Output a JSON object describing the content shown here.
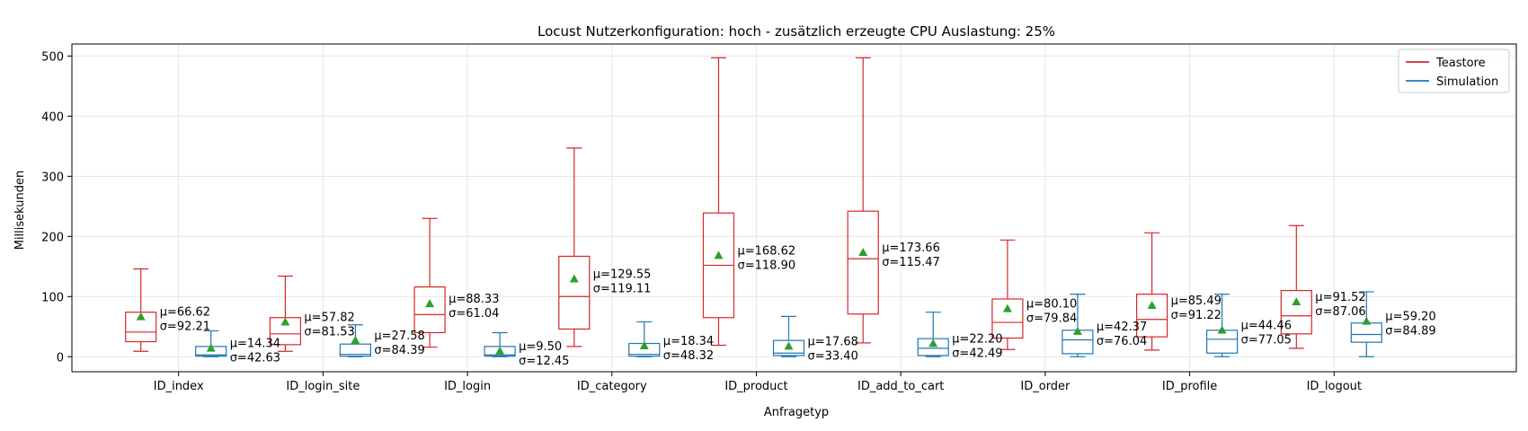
{
  "chart_data": {
    "type": "box",
    "title": "Locust Nutzerkonfiguration: hoch - zusätzlich erzeugte CPU Auslastung: 25%",
    "xlabel": "Anfragetyp",
    "ylabel": "Millisekunden",
    "ylim": [
      -25,
      520
    ],
    "yticks": [
      0,
      100,
      200,
      300,
      400,
      500
    ],
    "grid": true,
    "legend_position": "top-right",
    "categories": [
      "ID_index",
      "ID_login_site",
      "ID_login",
      "ID_category",
      "ID_product",
      "ID_add_to_cart",
      "ID_order",
      "ID_profile",
      "ID_logout"
    ],
    "series": [
      {
        "name": "Teastore",
        "color": "#d62728",
        "boxes": [
          {
            "whisker_low": 9,
            "q1": 25,
            "median": 41,
            "q3": 74,
            "whisker_high": 146,
            "mean": 66.62,
            "mean_label": "μ=66.62",
            "std_label": "σ=92.21"
          },
          {
            "whisker_low": 9,
            "q1": 20,
            "median": 38,
            "q3": 65,
            "whisker_high": 134,
            "mean": 57.82,
            "mean_label": "μ=57.82",
            "std_label": "σ=81.53"
          },
          {
            "whisker_low": 16,
            "q1": 40,
            "median": 70,
            "q3": 116,
            "whisker_high": 230,
            "mean": 88.33,
            "mean_label": "μ=88.33",
            "std_label": "σ=61.04"
          },
          {
            "whisker_low": 17,
            "q1": 46,
            "median": 100,
            "q3": 167,
            "whisker_high": 347,
            "mean": 129.55,
            "mean_label": "μ=129.55",
            "std_label": "σ=119.11"
          },
          {
            "whisker_low": 19,
            "q1": 65,
            "median": 152,
            "q3": 239,
            "whisker_high": 497,
            "mean": 168.62,
            "mean_label": "μ=168.62",
            "std_label": "σ=118.90"
          },
          {
            "whisker_low": 23,
            "q1": 71,
            "median": 163,
            "q3": 242,
            "whisker_high": 497,
            "mean": 173.66,
            "mean_label": "μ=173.66",
            "std_label": "σ=115.47"
          },
          {
            "whisker_low": 12,
            "q1": 31,
            "median": 57,
            "q3": 96,
            "whisker_high": 194,
            "mean": 80.1,
            "mean_label": "μ=80.10",
            "std_label": "σ=79.84"
          },
          {
            "whisker_low": 11,
            "q1": 33,
            "median": 62,
            "q3": 104,
            "whisker_high": 206,
            "mean": 85.49,
            "mean_label": "μ=85.49",
            "std_label": "σ=91.22"
          },
          {
            "whisker_low": 14,
            "q1": 38,
            "median": 68,
            "q3": 110,
            "whisker_high": 218,
            "mean": 91.52,
            "mean_label": "μ=91.52",
            "std_label": "σ=87.06"
          }
        ]
      },
      {
        "name": "Simulation",
        "color": "#1f77b4",
        "boxes": [
          {
            "whisker_low": 0,
            "q1": 1,
            "median": 3,
            "q3": 17,
            "whisker_high": 43,
            "mean": 14.34,
            "mean_label": "μ=14.34",
            "std_label": "σ=42.63"
          },
          {
            "whisker_low": 0,
            "q1": 1,
            "median": 4,
            "q3": 21,
            "whisker_high": 53,
            "mean": 27.58,
            "mean_label": "μ=27.58",
            "std_label": "σ=84.39"
          },
          {
            "whisker_low": 0,
            "q1": 1,
            "median": 3,
            "q3": 17,
            "whisker_high": 40,
            "mean": 9.5,
            "mean_label": "μ=9.50",
            "std_label": "σ=12.45"
          },
          {
            "whisker_low": 0,
            "q1": 1,
            "median": 4,
            "q3": 22,
            "whisker_high": 58,
            "mean": 18.34,
            "mean_label": "μ=18.34",
            "std_label": "σ=48.32"
          },
          {
            "whisker_low": 0,
            "q1": 2,
            "median": 6,
            "q3": 27,
            "whisker_high": 67,
            "mean": 17.68,
            "mean_label": "μ=17.68",
            "std_label": "σ=33.40"
          },
          {
            "whisker_low": 0,
            "q1": 2,
            "median": 14,
            "q3": 30,
            "whisker_high": 74,
            "mean": 22.2,
            "mean_label": "μ=22.20",
            "std_label": "σ=42.49"
          },
          {
            "whisker_low": 0,
            "q1": 5,
            "median": 28,
            "q3": 44,
            "whisker_high": 104,
            "mean": 42.37,
            "mean_label": "μ=42.37",
            "std_label": "σ=76.04"
          },
          {
            "whisker_low": 0,
            "q1": 6,
            "median": 29,
            "q3": 44,
            "whisker_high": 104,
            "mean": 44.46,
            "mean_label": "μ=44.46",
            "std_label": "σ=77.05"
          },
          {
            "whisker_low": 0,
            "q1": 24,
            "median": 37,
            "q3": 56,
            "whisker_high": 108,
            "mean": 59.2,
            "mean_label": "μ=59.20",
            "std_label": "σ=84.89"
          }
        ]
      }
    ],
    "mean_marker_color": "#2ca02c"
  }
}
